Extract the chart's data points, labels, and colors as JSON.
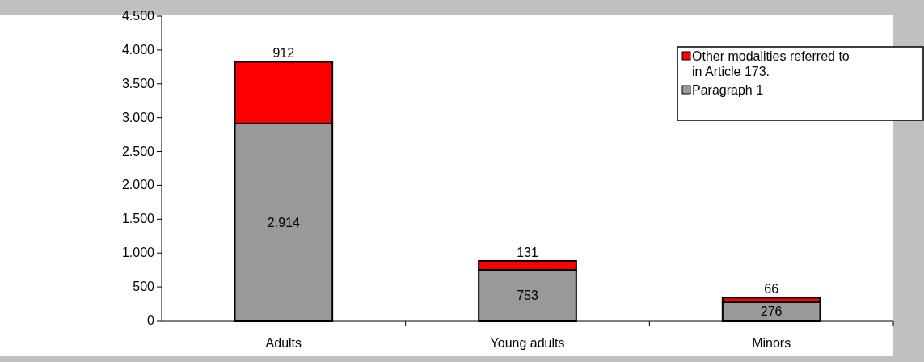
{
  "chart_data": {
    "type": "bar",
    "stacked": true,
    "categories": [
      "Adults",
      "Young adults",
      "Minors"
    ],
    "series": [
      {
        "name": "Paragraph 1",
        "color": "#999999",
        "values": [
          2914,
          753,
          276
        ],
        "value_labels": [
          "2.914",
          "753",
          "276"
        ]
      },
      {
        "name": "Other modalities referred to in Article 173.",
        "color": "#ff0000",
        "values": [
          912,
          131,
          66
        ],
        "value_labels": [
          "912",
          "131",
          "66"
        ]
      }
    ],
    "ylim": [
      0,
      4500
    ],
    "yticks": [
      0,
      500,
      {
        "value": 1000,
        "label": "1.000"
      },
      {
        "value": 1500,
        "label": "1.500"
      },
      {
        "value": 2000,
        "label": "2.000"
      },
      {
        "value": 2500,
        "label": "2.500"
      },
      {
        "value": 3000,
        "label": "3.000"
      },
      {
        "value": 3500,
        "label": "3.500"
      },
      {
        "value": 4000,
        "label": "4.000"
      },
      {
        "value": 4500,
        "label": "4.500"
      }
    ],
    "legend": "top right"
  }
}
